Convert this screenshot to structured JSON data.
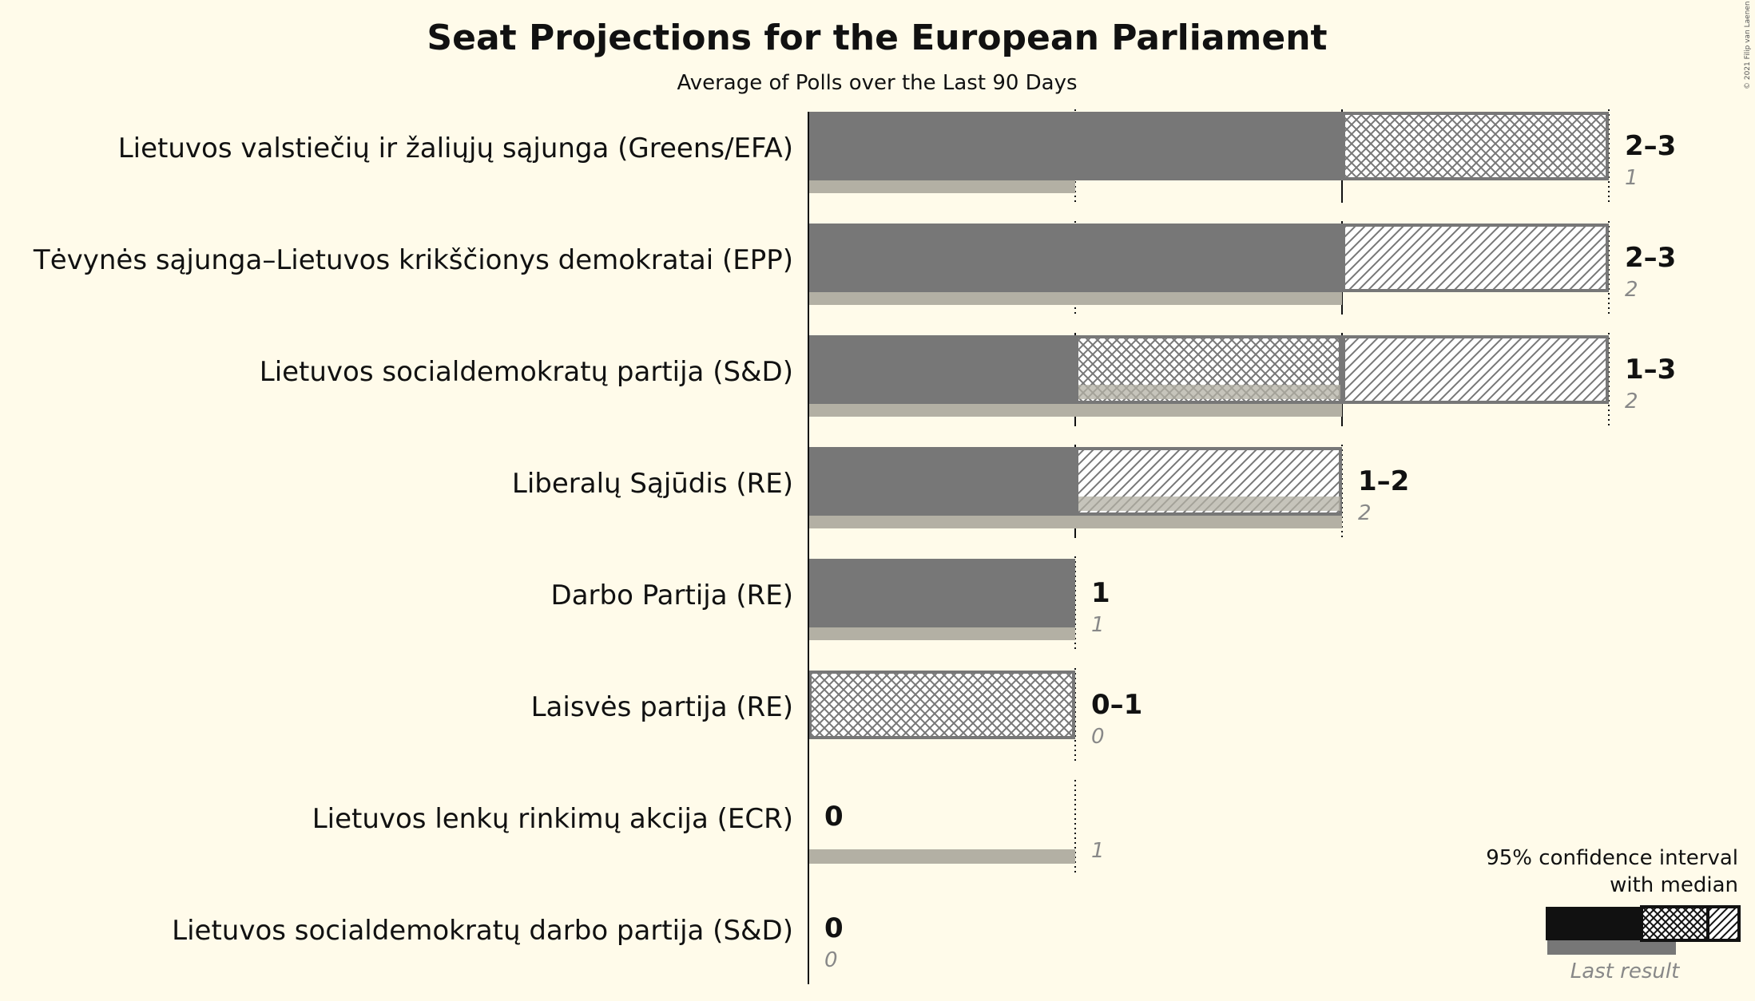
{
  "chart_data": {
    "type": "bar",
    "title": "Seat Projections for the European Parliament",
    "subtitle": "Average of Polls over the Last 90 Days",
    "copyright": "© 2021 Filip van Laenen",
    "xlim": [
      0,
      3
    ],
    "categories": [
      "Lietuvos valstiečių ir žaliųjų sąjunga (Greens/EFA)",
      "Tėvynės sąjunga–Lietuvos krikščionys demokratai (EPP)",
      "Lietuvos socialdemokratų partija (S&D)",
      "Liberalų Sąjūdis (RE)",
      "Darbo Partija (RE)",
      "Laisvės partija (RE)",
      "Lietuvos lenkų rinkimų akcija (ECR)",
      "Lietuvos socialdemokratų darbo partija (S&D)"
    ],
    "series": [
      {
        "name": "95% confidence interval lower bound",
        "values": [
          2,
          2,
          1,
          1,
          1,
          0,
          0,
          0
        ]
      },
      {
        "name": "median",
        "values": [
          3,
          2,
          2,
          1,
          1,
          1,
          0,
          0
        ]
      },
      {
        "name": "95% confidence interval upper bound",
        "values": [
          3,
          3,
          3,
          2,
          1,
          1,
          0,
          0
        ]
      },
      {
        "name": "Last result",
        "values": [
          1,
          2,
          2,
          2,
          1,
          0,
          1,
          0
        ]
      }
    ],
    "range_labels": [
      "2–3",
      "2–3",
      "1–3",
      "1–2",
      "1",
      "0–1",
      "0",
      "0"
    ],
    "last_labels": [
      "1",
      "2",
      "2",
      "2",
      "1",
      "0",
      "1",
      "0"
    ],
    "legend": {
      "title_line1": "95% confidence interval",
      "title_line2": "with median",
      "last_result": "Last result",
      "position": "bottom-right"
    },
    "colors": {
      "bar": "#777777",
      "last": "#b3b0a4",
      "hatch": "#777777",
      "background": "#fffbea",
      "legend_bar": "#111111"
    }
  }
}
